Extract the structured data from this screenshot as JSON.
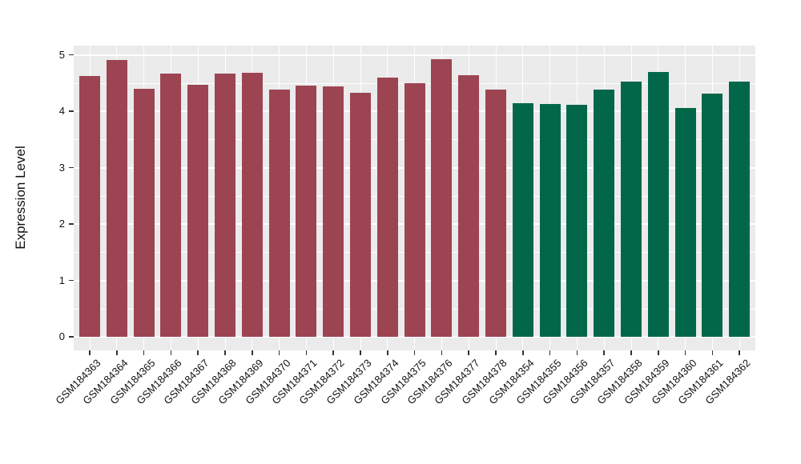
{
  "chart_data": {
    "type": "bar",
    "title": "",
    "xlabel": "",
    "ylabel": "Expression Level",
    "ylim": [
      0,
      5.17
    ],
    "yticks": [
      0,
      1,
      2,
      3,
      4,
      5
    ],
    "y_minor_interval": 0.5,
    "grid": "white major and minor gridlines on gray panel",
    "legend_position": "none",
    "bar_groups": [
      {
        "name": "group-red",
        "color": "#9D4452",
        "bars": [
          {
            "label": "GSM184363",
            "value": 4.63
          },
          {
            "label": "GSM184364",
            "value": 4.91
          },
          {
            "label": "GSM184365",
            "value": 4.4
          },
          {
            "label": "GSM184366",
            "value": 4.67
          },
          {
            "label": "GSM184367",
            "value": 4.47
          },
          {
            "label": "GSM184368",
            "value": 4.66
          },
          {
            "label": "GSM184369",
            "value": 4.68
          },
          {
            "label": "GSM184370",
            "value": 4.38
          },
          {
            "label": "GSM184371",
            "value": 4.46
          },
          {
            "label": "GSM184372",
            "value": 4.44
          },
          {
            "label": "GSM184373",
            "value": 4.32
          },
          {
            "label": "GSM184374",
            "value": 4.6
          },
          {
            "label": "GSM184375",
            "value": 4.5
          },
          {
            "label": "GSM184376",
            "value": 4.92
          },
          {
            "label": "GSM184377",
            "value": 4.64
          },
          {
            "label": "GSM184378",
            "value": 4.39
          }
        ]
      },
      {
        "name": "group-green",
        "color": "#026749",
        "bars": [
          {
            "label": "GSM184354",
            "value": 4.14
          },
          {
            "label": "GSM184355",
            "value": 4.13
          },
          {
            "label": "GSM184356",
            "value": 4.11
          },
          {
            "label": "GSM184357",
            "value": 4.39
          },
          {
            "label": "GSM184358",
            "value": 4.53
          },
          {
            "label": "GSM184359",
            "value": 4.69
          },
          {
            "label": "GSM184360",
            "value": 4.05
          },
          {
            "label": "GSM184361",
            "value": 4.31
          },
          {
            "label": "GSM184362",
            "value": 4.52
          }
        ]
      }
    ]
  },
  "style": {
    "page_bg": "#FFFFFF",
    "panel_bg": "#EBEBEB",
    "grid_color": "#FFFFFF",
    "text_color": "#111111",
    "tick_color": "#333333"
  }
}
